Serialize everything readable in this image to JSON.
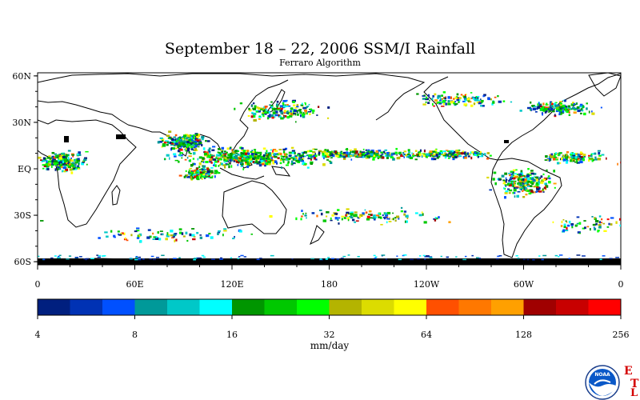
{
  "title": "September 18 – 22, 2006 SSM/I Rainfall",
  "subtitle": "Ferraro Algorithm",
  "map": {
    "lat_labels": [
      "60N",
      "30N",
      "EQ",
      "30S",
      "60S"
    ],
    "lat_values": [
      60,
      30,
      0,
      -30,
      -60
    ],
    "lon_labels": [
      "0",
      "60E",
      "120E",
      "180",
      "120W",
      "60W",
      "0"
    ],
    "lon_values": [
      0,
      60,
      120,
      180,
      240,
      300,
      360
    ],
    "lat_range": [
      -62,
      62
    ],
    "lon_range": [
      0,
      360
    ]
  },
  "colorbar": {
    "unit": "mm/day",
    "tick_labels": [
      "4",
      "8",
      "16",
      "32",
      "64",
      "128",
      "256"
    ],
    "colors": [
      "#001f7f",
      "#0032b4",
      "#0050ff",
      "#009999",
      "#00c8c8",
      "#00ffff",
      "#009600",
      "#00c800",
      "#00ff00",
      "#b4b400",
      "#dcdc00",
      "#ffff00",
      "#ff5000",
      "#ff7800",
      "#ffa000",
      "#a00000",
      "#c80000",
      "#ff0000"
    ]
  },
  "branding": {
    "logo_text": "NOAA",
    "etl_letters": [
      "E",
      "T",
      "L"
    ]
  }
}
